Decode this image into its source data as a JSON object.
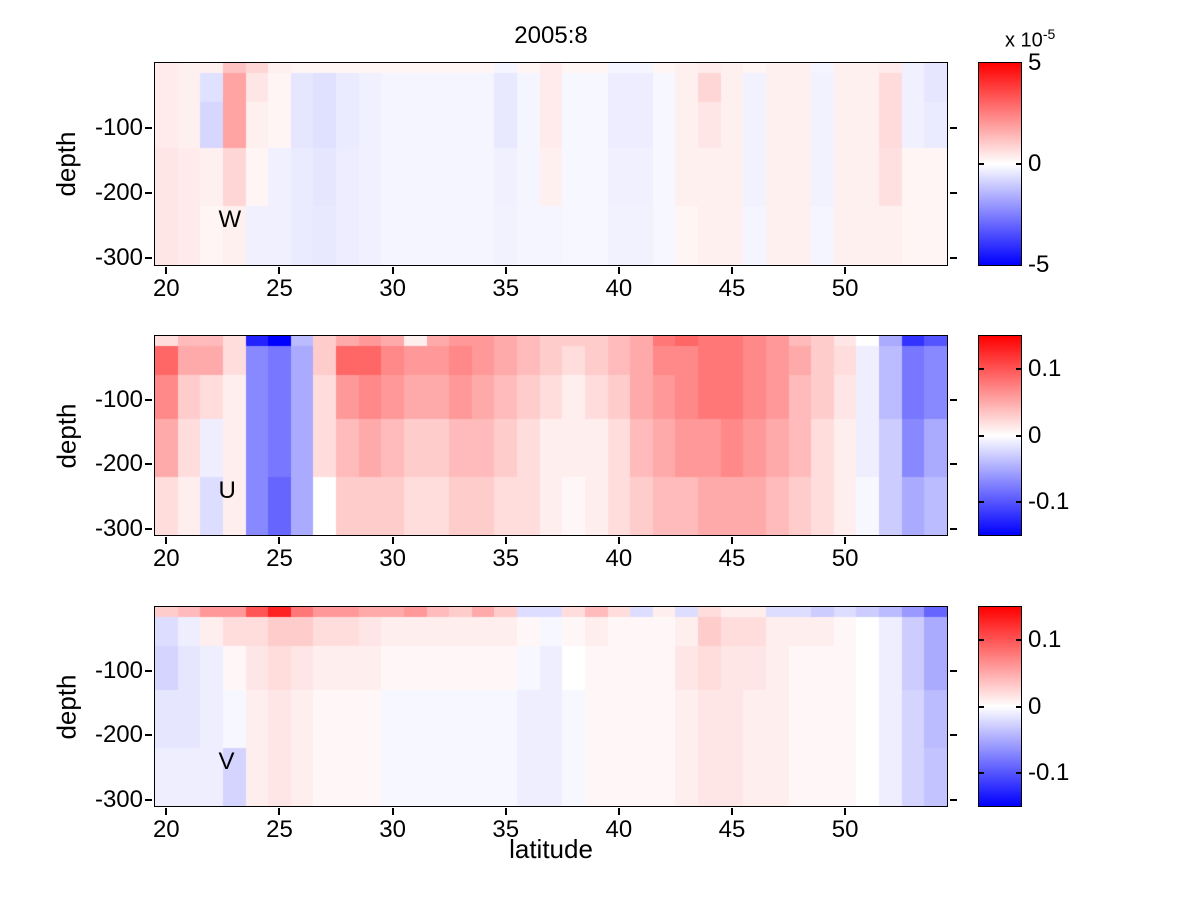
{
  "figure": {
    "title": "2005:8",
    "xlabel": "latitude",
    "ylabel": "depth"
  },
  "colors": {
    "background": "#ffffff",
    "axis": "#000000",
    "positive_max": "#ff0000",
    "zero": "#ffffff",
    "negative_max": "#0000ff"
  },
  "chart_data": [
    {
      "type": "heatmap",
      "panel_label": "W",
      "title": "2005:8",
      "xlabel": "latitude",
      "ylabel": "depth",
      "xlim": [
        19.5,
        54.5
      ],
      "ylim": [
        -310,
        0
      ],
      "xticks": [
        20,
        25,
        30,
        35,
        40,
        45,
        50
      ],
      "yticks": [
        -100,
        -200,
        -300
      ],
      "colorbar": {
        "clim": [
          -5,
          5
        ],
        "ticks": [
          5,
          0,
          -5
        ],
        "scale_prefix": "x 10",
        "scale_exponent": "-5",
        "units": "1e-5"
      },
      "lat_edges": [
        19.5,
        20.5,
        21.5,
        22.5,
        23.5,
        24.5,
        25.5,
        26.5,
        27.5,
        28.5,
        29.5,
        30.5,
        31.5,
        32.5,
        33.5,
        34.5,
        35.5,
        36.5,
        37.5,
        38.5,
        39.5,
        40.5,
        41.5,
        42.5,
        43.5,
        44.5,
        45.5,
        46.5,
        47.5,
        48.5,
        49.5,
        50.5,
        51.5,
        52.5,
        53.5,
        54.5
      ],
      "depth_edges": [
        0,
        -15,
        -60,
        -130,
        -220,
        -310
      ],
      "values": [
        [
          0.4,
          0.3,
          0.3,
          1.2,
          0.8,
          0.3,
          0.2,
          0.2,
          0.2,
          0.2,
          0.2,
          0.2,
          0.2,
          0.2,
          0.2,
          -0.2,
          0.2,
          0.4,
          0.2,
          0.2,
          -0.2,
          -0.2,
          0.2,
          0.3,
          0.4,
          0.3,
          0.2,
          0.3,
          0.3,
          -0.2,
          0.3,
          0.3,
          0.4,
          -0.3,
          -0.5
        ],
        [
          0.4,
          0.3,
          -0.6,
          1.8,
          0.5,
          0.2,
          -0.5,
          -0.6,
          -0.4,
          -0.3,
          -0.2,
          -0.2,
          -0.2,
          -0.2,
          -0.2,
          -0.45,
          -0.2,
          0.4,
          -0.15,
          -0.15,
          -0.35,
          -0.35,
          -0.15,
          0.3,
          0.8,
          0.3,
          -0.25,
          0.3,
          0.3,
          -0.25,
          0.3,
          0.3,
          0.7,
          -0.3,
          -0.5
        ],
        [
          0.4,
          0.3,
          -0.8,
          1.8,
          0.3,
          0.2,
          -0.5,
          -0.6,
          -0.4,
          -0.3,
          -0.2,
          -0.2,
          -0.2,
          -0.2,
          -0.2,
          -0.45,
          -0.2,
          0.4,
          -0.15,
          -0.15,
          -0.35,
          -0.35,
          -0.15,
          0.3,
          0.5,
          0.3,
          -0.25,
          0.3,
          0.3,
          -0.25,
          0.3,
          0.3,
          0.7,
          -0.3,
          -0.4
        ],
        [
          0.5,
          0.4,
          0.3,
          0.8,
          0.2,
          -0.3,
          -0.4,
          -0.5,
          -0.35,
          -0.3,
          -0.2,
          -0.2,
          -0.2,
          -0.2,
          -0.2,
          -0.3,
          -0.2,
          0.3,
          -0.15,
          -0.15,
          -0.3,
          -0.3,
          -0.15,
          0.3,
          0.3,
          0.3,
          -0.25,
          0.3,
          0.3,
          -0.25,
          0.3,
          0.3,
          0.6,
          0.2,
          0.2
        ],
        [
          0.5,
          0.4,
          0.2,
          0.3,
          -0.3,
          -0.3,
          -0.4,
          -0.45,
          -0.35,
          -0.3,
          -0.2,
          -0.2,
          -0.2,
          -0.2,
          -0.2,
          -0.25,
          -0.2,
          -0.2,
          -0.15,
          -0.15,
          -0.25,
          -0.25,
          -0.15,
          0.2,
          0.3,
          0.3,
          -0.2,
          0.3,
          0.3,
          -0.2,
          0.3,
          0.3,
          0.3,
          0.2,
          0.2
        ]
      ]
    },
    {
      "type": "heatmap",
      "panel_label": "U",
      "xlabel": "latitude",
      "ylabel": "depth",
      "xlim": [
        19.5,
        54.5
      ],
      "ylim": [
        -310,
        0
      ],
      "xticks": [
        20,
        25,
        30,
        35,
        40,
        45,
        50
      ],
      "yticks": [
        -100,
        -200,
        -300
      ],
      "colorbar": {
        "clim": [
          -0.15,
          0.15
        ],
        "ticks": [
          0.1,
          0,
          -0.1
        ]
      },
      "lat_edges": [
        19.5,
        20.5,
        21.5,
        22.5,
        23.5,
        24.5,
        25.5,
        26.5,
        27.5,
        28.5,
        29.5,
        30.5,
        31.5,
        32.5,
        33.5,
        34.5,
        35.5,
        36.5,
        37.5,
        38.5,
        39.5,
        40.5,
        41.5,
        42.5,
        43.5,
        44.5,
        45.5,
        46.5,
        47.5,
        48.5,
        49.5,
        50.5,
        51.5,
        52.5,
        53.5,
        54.5
      ],
      "depth_edges": [
        0,
        -15,
        -60,
        -130,
        -220,
        -310
      ],
      "values": [
        [
          0.02,
          0.04,
          0.04,
          0.02,
          -0.13,
          -0.15,
          -0.04,
          0.03,
          0.05,
          0.06,
          0.05,
          0.01,
          0.05,
          0.06,
          0.06,
          0.05,
          0.04,
          0.03,
          0.03,
          0.03,
          0.04,
          0.05,
          0.08,
          0.09,
          0.08,
          0.08,
          0.07,
          0.06,
          0.04,
          0.03,
          0.015,
          0,
          -0.05,
          -0.12,
          -0.1
        ],
        [
          0.09,
          0.05,
          0.05,
          0.02,
          -0.07,
          -0.08,
          -0.05,
          0.03,
          0.09,
          0.09,
          0.07,
          0.06,
          0.06,
          0.07,
          0.06,
          0.05,
          0.04,
          0.03,
          0.02,
          0.03,
          0.04,
          0.05,
          0.07,
          0.07,
          0.08,
          0.08,
          0.07,
          0.06,
          0.05,
          0.03,
          0.02,
          -0.01,
          -0.04,
          -0.08,
          -0.07
        ],
        [
          0.07,
          0.03,
          0.02,
          0.01,
          -0.07,
          -0.08,
          -0.05,
          0.02,
          0.06,
          0.07,
          0.06,
          0.05,
          0.05,
          0.06,
          0.05,
          0.04,
          0.03,
          0.02,
          0.01,
          0.02,
          0.03,
          0.05,
          0.06,
          0.07,
          0.08,
          0.08,
          0.07,
          0.06,
          0.04,
          0.03,
          0.015,
          -0.01,
          -0.04,
          -0.08,
          -0.07
        ],
        [
          0.05,
          0.02,
          -0.01,
          0.01,
          -0.07,
          -0.08,
          -0.05,
          0.02,
          0.04,
          0.05,
          0.04,
          0.03,
          0.03,
          0.04,
          0.04,
          0.03,
          0.02,
          0.01,
          0.01,
          0.01,
          0.02,
          0.04,
          0.05,
          0.06,
          0.06,
          0.07,
          0.06,
          0.05,
          0.04,
          0.02,
          0.01,
          -0.01,
          -0.03,
          -0.07,
          -0.05
        ],
        [
          0.02,
          0.01,
          -0.02,
          0.01,
          -0.07,
          -0.09,
          -0.05,
          0,
          0.03,
          0.03,
          0.03,
          0.02,
          0.02,
          0.03,
          0.03,
          0.02,
          0.02,
          0.01,
          0.005,
          0.01,
          0.02,
          0.03,
          0.04,
          0.04,
          0.05,
          0.05,
          0.05,
          0.04,
          0.03,
          0.02,
          0.01,
          -0.005,
          -0.03,
          -0.05,
          -0.04
        ]
      ]
    },
    {
      "type": "heatmap",
      "panel_label": "V",
      "xlabel": "latitude",
      "ylabel": "depth",
      "xlim": [
        19.5,
        54.5
      ],
      "ylim": [
        -310,
        0
      ],
      "xticks": [
        20,
        25,
        30,
        35,
        40,
        45,
        50
      ],
      "yticks": [
        -100,
        -200,
        -300
      ],
      "colorbar": {
        "clim": [
          -0.15,
          0.15
        ],
        "ticks": [
          0.1,
          0,
          -0.1
        ]
      },
      "lat_edges": [
        19.5,
        20.5,
        21.5,
        22.5,
        23.5,
        24.5,
        25.5,
        26.5,
        27.5,
        28.5,
        29.5,
        30.5,
        31.5,
        32.5,
        33.5,
        34.5,
        35.5,
        36.5,
        37.5,
        38.5,
        39.5,
        40.5,
        41.5,
        42.5,
        43.5,
        44.5,
        45.5,
        46.5,
        47.5,
        48.5,
        49.5,
        50.5,
        51.5,
        52.5,
        53.5,
        54.5
      ],
      "depth_edges": [
        0,
        -15,
        -60,
        -130,
        -220,
        -310
      ],
      "values": [
        [
          0.03,
          0.04,
          0.06,
          0.06,
          0.1,
          0.13,
          0.08,
          0.06,
          0.06,
          0.05,
          0.05,
          0.06,
          0.04,
          0.03,
          0.05,
          0.03,
          -0.02,
          -0.02,
          0.02,
          0.04,
          0.02,
          -0.02,
          0.01,
          -0.02,
          0.02,
          0.01,
          0.01,
          -0.02,
          -0.02,
          -0.03,
          -0.02,
          -0.03,
          -0.04,
          -0.06,
          -0.09
        ],
        [
          -0.02,
          -0.01,
          0.01,
          0.02,
          0.02,
          0.03,
          0.03,
          0.02,
          0.02,
          0.015,
          0.01,
          0.01,
          0.01,
          0.01,
          0.01,
          0.01,
          0.005,
          -0.005,
          0.005,
          0.01,
          0.005,
          0.005,
          0.005,
          0.01,
          0.03,
          0.02,
          0.02,
          0.01,
          0.01,
          0.01,
          0.005,
          0,
          -0.01,
          -0.03,
          -0.05
        ],
        [
          -0.025,
          -0.015,
          -0.01,
          0.005,
          0.015,
          0.02,
          0.015,
          0.01,
          0.01,
          0.01,
          0.005,
          0.005,
          0.005,
          0.005,
          0.005,
          0.005,
          -0.005,
          -0.01,
          0,
          0.005,
          0.005,
          0.005,
          0.005,
          0.015,
          0.02,
          0.015,
          0.015,
          0.01,
          0.005,
          0.005,
          0.005,
          0,
          -0.01,
          -0.03,
          -0.05
        ],
        [
          -0.015,
          -0.015,
          -0.01,
          -0.005,
          0.01,
          0.015,
          0.01,
          0.005,
          0.005,
          0.005,
          -0.005,
          -0.005,
          -0.005,
          -0.005,
          -0.005,
          -0.005,
          -0.01,
          -0.01,
          -0.005,
          0.005,
          0.005,
          0.005,
          0.005,
          0.01,
          0.015,
          0.015,
          0.01,
          0.01,
          0.005,
          0.005,
          0.005,
          0,
          -0.01,
          -0.025,
          -0.04
        ],
        [
          -0.01,
          -0.01,
          -0.01,
          -0.025,
          0.01,
          0.015,
          0.01,
          0.005,
          0.005,
          0.005,
          -0.005,
          -0.005,
          -0.005,
          -0.005,
          -0.005,
          -0.005,
          -0.01,
          -0.01,
          -0.005,
          0.005,
          0.005,
          0.005,
          0.005,
          0.01,
          0.015,
          0.015,
          0.01,
          0.01,
          0.005,
          0.005,
          0.005,
          0,
          -0.01,
          -0.025,
          -0.035
        ]
      ]
    }
  ]
}
